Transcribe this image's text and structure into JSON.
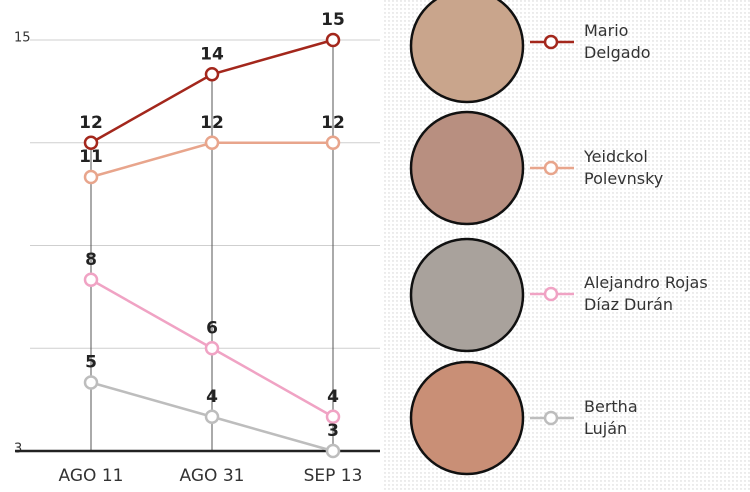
{
  "chart_data": {
    "type": "line",
    "categories": [
      "AGO 11",
      "AGO 31",
      "SEP 13"
    ],
    "series": [
      {
        "name": "Mario Delgado",
        "color": "#a3271c",
        "values": [
          12,
          14,
          15
        ]
      },
      {
        "name": "Yeidckol Polevnsky",
        "color": "#e8a58c",
        "values": [
          11,
          12,
          12
        ]
      },
      {
        "name": "Alejandro Rojas Díaz Durán",
        "color": "#f0a3c4",
        "values": [
          8,
          6,
          4
        ]
      },
      {
        "name": "Bertha Luján",
        "color": "#bdbdbd",
        "values": [
          5,
          4,
          3
        ]
      }
    ],
    "ylim": [
      3,
      15
    ],
    "yticks": [
      3,
      {
        "value": 6,
        "label": null
      },
      {
        "value": 9,
        "label": null
      },
      {
        "value": 12,
        "label": null
      },
      15
    ],
    "grid": true
  }
}
